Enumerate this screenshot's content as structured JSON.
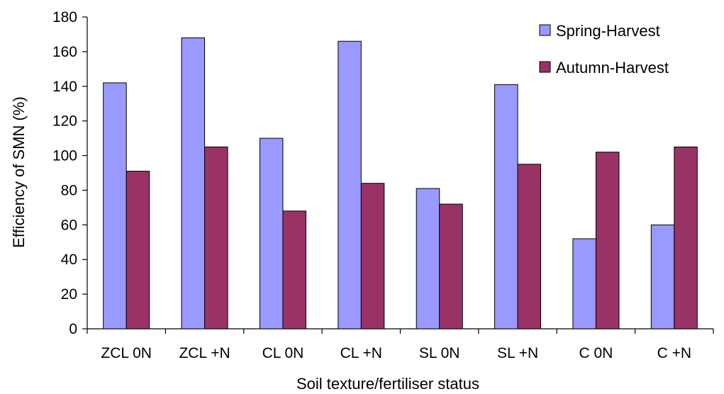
{
  "chart_data": {
    "type": "bar",
    "title": "",
    "xlabel": "Soil texture/fertiliser status",
    "ylabel": "Efficiency of SMN (%)",
    "ylim": [
      0,
      180
    ],
    "yticks": [
      0,
      20,
      40,
      60,
      80,
      100,
      120,
      140,
      160,
      180
    ],
    "grid": false,
    "legend_position": "top-right",
    "categories": [
      "ZCL 0N",
      "ZCL +N",
      "CL 0N",
      "CL +N",
      "SL 0N",
      "SL +N",
      "C 0N",
      "C +N"
    ],
    "series": [
      {
        "name": "Spring-Harvest",
        "color": "#9999ff",
        "values": [
          142,
          168,
          110,
          166,
          81,
          141,
          52,
          60
        ]
      },
      {
        "name": "Autumn-Harvest",
        "color": "#993366",
        "values": [
          91,
          105,
          68,
          84,
          72,
          95,
          102,
          105
        ]
      }
    ]
  }
}
